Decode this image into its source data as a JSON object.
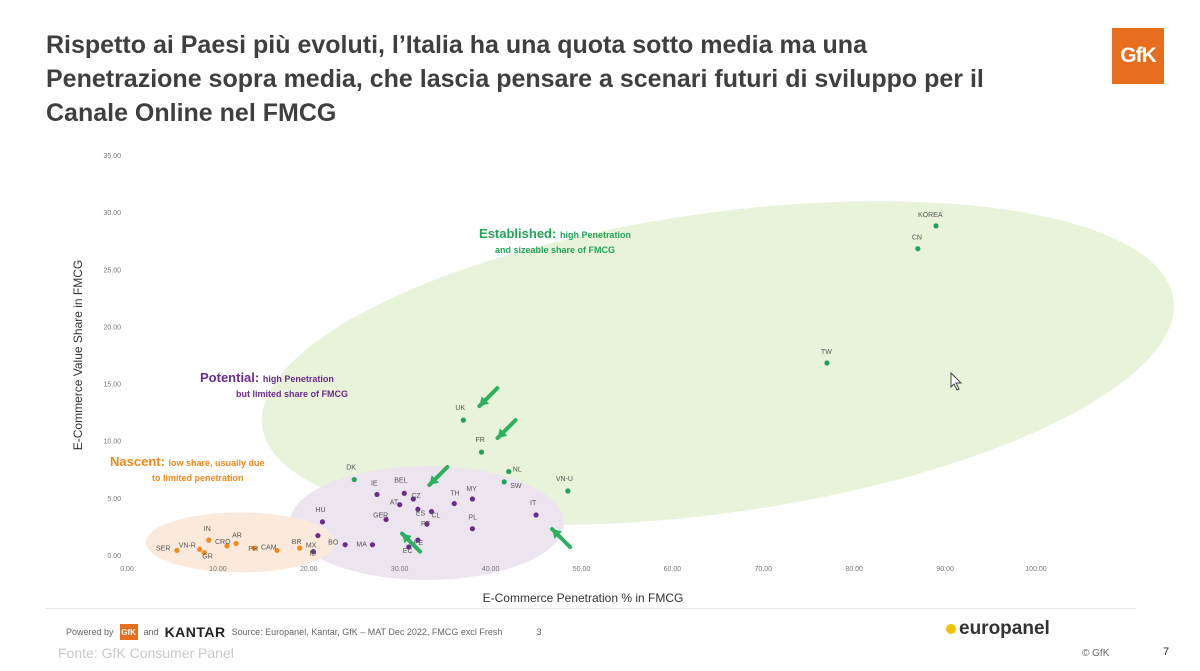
{
  "title": {
    "line1": "Rispetto ai Paesi più evoluti, l’Italia ha una quota sotto media ma una",
    "line2": "Penetrazione sopra media, che lascia pensare a scenari futuri di sviluppo per il",
    "line3": "Canale Online nel FMCG"
  },
  "logo": {
    "text": "GfK",
    "color": "#e86e1f"
  },
  "colors": {
    "established": "#22a35a",
    "potential": "#6b2c8f",
    "nascent": "#f08a1c",
    "established_fill": "#e9f3d9",
    "potential_fill": "#ece4ef",
    "nascent_fill": "#fbeadb",
    "arrow": "#2bb05d"
  },
  "chart_data": {
    "type": "scatter",
    "xlabel": "E-Commerce Penetration % in FMCG",
    "ylabel": "E-Commerce Value Share in FMCG",
    "xlim": [
      0,
      100
    ],
    "ylim": [
      0,
      35
    ],
    "xticks": [
      "0.00",
      "10.00",
      "20.00",
      "30.00",
      "40.00",
      "50.00",
      "60.00",
      "70.00",
      "80.00",
      "90.00",
      "100.00"
    ],
    "yticks": [
      "0.00",
      "5.00",
      "10.00",
      "15.00",
      "20.00",
      "25.00",
      "30.00",
      "35.00"
    ],
    "groups": [
      {
        "key": "established",
        "label_bold": "Established:",
        "label_rest_1": "high Penetration",
        "label_rest_2": "and sizeable share of FMCG"
      },
      {
        "key": "potential",
        "label_bold": "Potential:",
        "label_rest_1": "high Penetration",
        "label_rest_2": "but limited share of FMCG"
      },
      {
        "key": "nascent",
        "label_bold": "Nascent:",
        "label_rest_1": "low share, usually due",
        "label_rest_2": "to limited penetration"
      }
    ],
    "points": [
      {
        "label": "KOREA",
        "x": 89.0,
        "y": 28.8,
        "group": "established"
      },
      {
        "label": "CN",
        "x": 87.0,
        "y": 26.8,
        "group": "established"
      },
      {
        "label": "TW",
        "x": 77.0,
        "y": 16.8,
        "group": "established"
      },
      {
        "label": "UK",
        "x": 37.0,
        "y": 11.8,
        "group": "established"
      },
      {
        "label": "FR",
        "x": 39.0,
        "y": 9.0,
        "group": "established"
      },
      {
        "label": "NL",
        "x": 42.0,
        "y": 7.3,
        "group": "established"
      },
      {
        "label": "SW",
        "x": 41.5,
        "y": 6.4,
        "group": "established"
      },
      {
        "label": "VN-U",
        "x": 48.5,
        "y": 5.6,
        "group": "established"
      },
      {
        "label": "DK",
        "x": 25.0,
        "y": 6.6,
        "group": "established"
      },
      {
        "label": "IE",
        "x": 27.5,
        "y": 5.3,
        "group": "potential"
      },
      {
        "label": "BEL",
        "x": 30.5,
        "y": 5.4,
        "group": "potential"
      },
      {
        "label": "CZ",
        "x": 31.5,
        "y": 4.9,
        "group": "potential"
      },
      {
        "label": "AT",
        "x": 30.0,
        "y": 4.4,
        "group": "potential"
      },
      {
        "label": "TH",
        "x": 36.0,
        "y": 4.5,
        "group": "potential"
      },
      {
        "label": "MY",
        "x": 38.0,
        "y": 4.9,
        "group": "potential"
      },
      {
        "label": "ES",
        "x": 32.0,
        "y": 4.0,
        "group": "potential"
      },
      {
        "label": "CL",
        "x": 33.5,
        "y": 3.8,
        "group": "potential"
      },
      {
        "label": "IT",
        "x": 45.0,
        "y": 3.5,
        "group": "potential"
      },
      {
        "label": "HU",
        "x": 21.5,
        "y": 2.9,
        "group": "potential"
      },
      {
        "label": "GER",
        "x": 28.5,
        "y": 3.1,
        "group": "potential"
      },
      {
        "label": "PT",
        "x": 33.0,
        "y": 2.7,
        "group": "potential"
      },
      {
        "label": "PL",
        "x": 38.0,
        "y": 2.3,
        "group": "potential"
      },
      {
        "label": "MX",
        "x": 21.0,
        "y": 1.7,
        "group": "potential"
      },
      {
        "label": "BO",
        "x": 24.0,
        "y": 0.9,
        "group": "potential"
      },
      {
        "label": "MA",
        "x": 27.0,
        "y": 0.9,
        "group": "potential"
      },
      {
        "label": "PE",
        "x": 32.0,
        "y": 1.3,
        "group": "potential"
      },
      {
        "label": "EC",
        "x": 31.0,
        "y": 0.7,
        "group": "potential"
      },
      {
        "label": "ID",
        "x": 20.5,
        "y": 0.3,
        "group": "potential"
      },
      {
        "label": "SER",
        "x": 5.5,
        "y": 0.4,
        "group": "nascent"
      },
      {
        "label": "VN-R",
        "x": 8.0,
        "y": 0.5,
        "group": "nascent"
      },
      {
        "label": "IN",
        "x": 9.0,
        "y": 1.3,
        "group": "nascent"
      },
      {
        "label": "GR",
        "x": 8.5,
        "y": 0.2,
        "group": "nascent"
      },
      {
        "label": "CRO",
        "x": 11.0,
        "y": 0.8,
        "group": "nascent"
      },
      {
        "label": "AR",
        "x": 12.0,
        "y": 1.0,
        "group": "nascent"
      },
      {
        "label": "PH",
        "x": 14.0,
        "y": 0.6,
        "group": "nascent"
      },
      {
        "label": "CAM",
        "x": 16.5,
        "y": 0.4,
        "group": "nascent"
      },
      {
        "label": "BR",
        "x": 19.0,
        "y": 0.6,
        "group": "nascent"
      }
    ],
    "arrows_at": [
      "UK",
      "FR",
      "CZ",
      "IT",
      "GER"
    ]
  },
  "footer": {
    "powered_by": "Powered by",
    "gfk_mini": "GfK",
    "and": "and",
    "kantar": "KANTAR",
    "source": "Source: Europanel, Kantar, GfK – MAT Dec 2022, FMCG excl Fresh",
    "inner_page": "3",
    "europanel": "europanel",
    "fonte": "Fonte: GfK Consumer Panel",
    "copyright": "© GfK",
    "page": "7"
  }
}
